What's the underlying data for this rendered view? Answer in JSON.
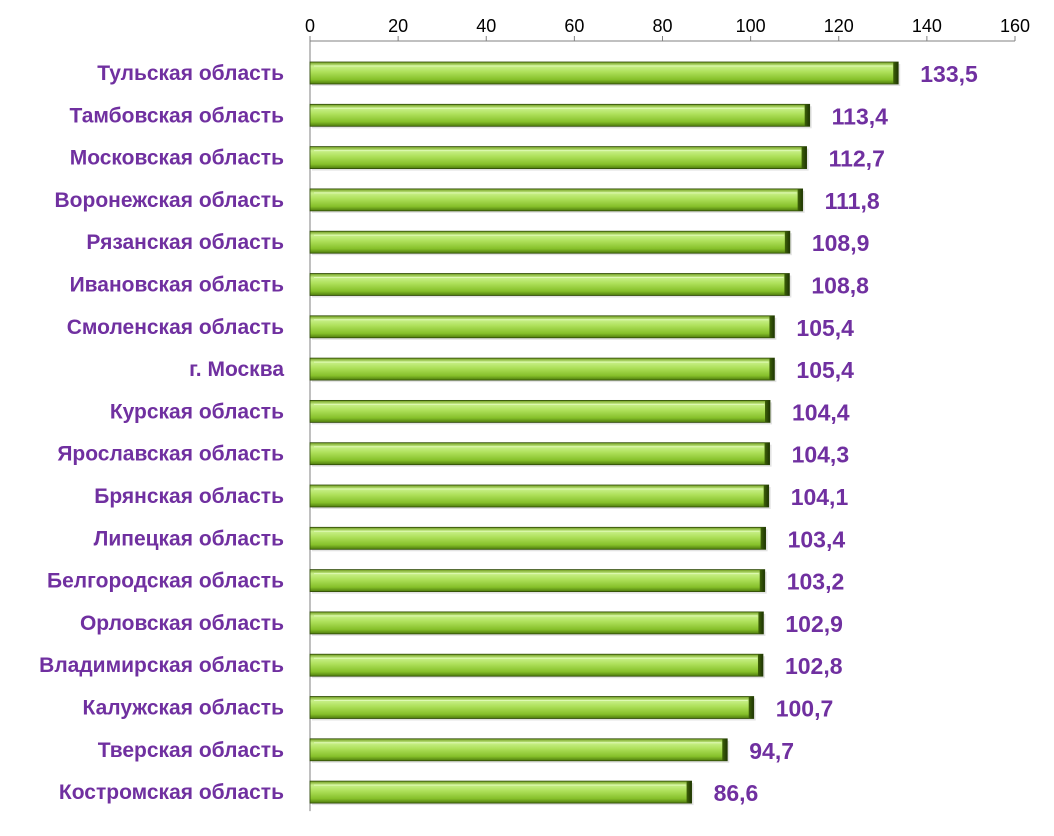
{
  "chart_data": {
    "type": "bar",
    "orientation": "horizontal",
    "title": "",
    "xlabel": "",
    "ylabel": "",
    "xlim": [
      0,
      160
    ],
    "x_ticks": [
      0,
      20,
      40,
      60,
      80,
      100,
      120,
      140,
      160
    ],
    "x_axis_position": "top",
    "grid": false,
    "legend": "none",
    "categories": [
      "Тульская область",
      "Тамбовская область",
      "Московская область",
      "Воронежская область",
      "Рязанская область",
      "Ивановская область",
      "Смоленская область",
      "г. Москва",
      "Курская область",
      "Ярославская область",
      "Брянская область",
      "Липецкая область",
      "Белгородская область",
      "Орловская область",
      "Владимирская область",
      "Калужская область",
      "Тверская область",
      "Костромская область"
    ],
    "values": [
      133.5,
      113.4,
      112.7,
      111.8,
      108.9,
      108.8,
      105.4,
      105.4,
      104.4,
      104.3,
      104.1,
      103.4,
      103.2,
      102.9,
      102.8,
      100.7,
      94.7,
      86.6
    ],
    "value_labels": [
      "133,5",
      "113,4",
      "112,7",
      "111,8",
      "108,9",
      "108,8",
      "105,4",
      "105,4",
      "104,4",
      "104,3",
      "104,1",
      "103,4",
      "103,2",
      "102,9",
      "102,8",
      "100,7",
      "94,7",
      "86,6"
    ],
    "colors": {
      "bar_light": "#d2f59a",
      "bar_mid": "#9acd32",
      "bar_dark": "#5b8a12",
      "bar_outline": "#2f4a08",
      "label_text": "#7030a0",
      "axis": "#808080"
    }
  }
}
